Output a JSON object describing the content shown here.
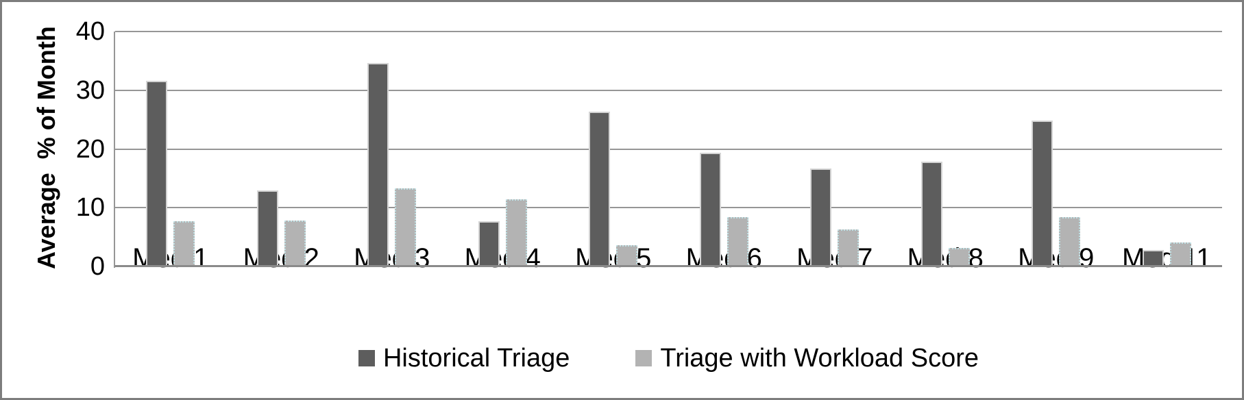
{
  "frame": {
    "border_color": "#7d7d7d",
    "background_color": "#ffffff",
    "gridline_color": "#969696",
    "axis_line_color": "#8a8a8a"
  },
  "chart_data": {
    "type": "bar",
    "title": "",
    "xlabel": "",
    "ylabel": "Average  % of Month",
    "ylim": [
      0,
      40
    ],
    "yticks": [
      0,
      10,
      20,
      30,
      40
    ],
    "grid": "horizontal",
    "legend_position": "bottom",
    "categories": [
      "Med 1",
      "Med 2",
      "Med 3",
      "Med 4",
      "Med 5",
      "Med 6",
      "Med 7",
      "Med 8",
      "Med 9",
      "Med 11"
    ],
    "series": [
      {
        "name": "Historical Triage",
        "color": "#5d5d5d",
        "values": [
          31.6,
          12.9,
          34.6,
          7.7,
          26.3,
          19.4,
          16.7,
          17.8,
          24.8,
          2.8
        ]
      },
      {
        "name": "Triage with Workload Score",
        "color": "#b3b3b3",
        "values": [
          7.7,
          7.8,
          13.3,
          11.4,
          3.6,
          8.4,
          6.3,
          3.2,
          8.4,
          4.1
        ]
      }
    ]
  }
}
